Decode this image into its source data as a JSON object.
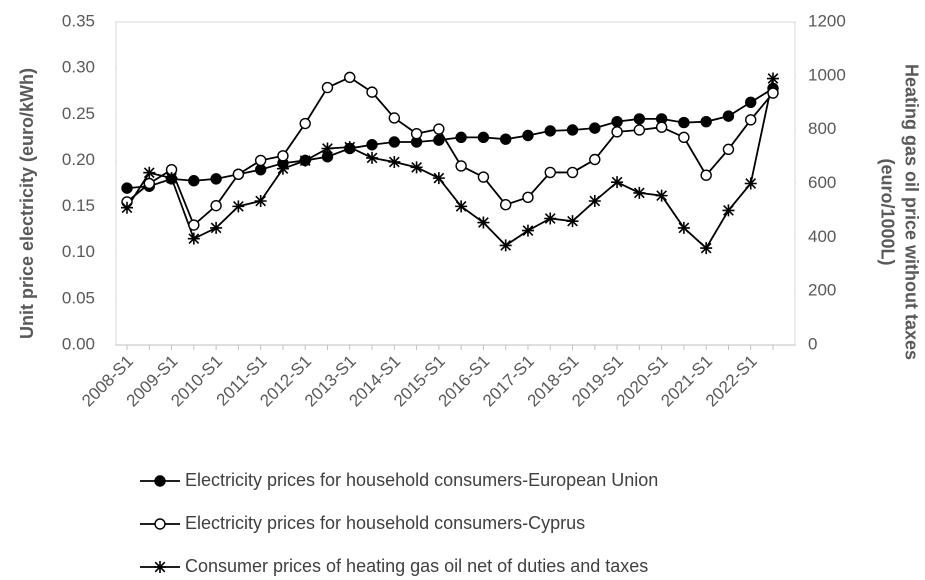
{
  "chart_data": {
    "type": "line",
    "categories": [
      "2008-S1",
      null,
      "2009-S1",
      null,
      "2010-S1",
      null,
      "2011-S1",
      null,
      "2012-S1",
      null,
      "2013-S1",
      null,
      "2014-S1",
      null,
      "2015-S1",
      null,
      "2016-S1",
      null,
      "2017-S1",
      null,
      "2018-S1",
      null,
      "2019-S1",
      null,
      "2020-S1",
      null,
      "2021-S1",
      null,
      "2022-S1",
      null
    ],
    "y_label": "Unit price electricity (euro/kWh)",
    "y2_label": [
      "Heating gas oil price without taxes",
      "(euro/1000L)"
    ],
    "ylim": [
      0,
      0.35
    ],
    "yticks": [
      {
        "value": 0,
        "label": "0.00"
      },
      {
        "value": 0.05,
        "label": "0.05"
      },
      {
        "value": 0.1,
        "label": "0.10"
      },
      {
        "value": 0.15,
        "label": "0.15"
      },
      {
        "value": 0.2,
        "label": "0.20"
      },
      {
        "value": 0.25,
        "label": "0.25"
      },
      {
        "value": 0.3,
        "label": "0.30"
      },
      {
        "value": 0.35,
        "label": "0.35"
      }
    ],
    "y2lim": [
      0,
      1200
    ],
    "y2ticks": [
      0,
      200,
      400,
      600,
      800,
      1000,
      1200
    ],
    "grid": false,
    "legend": "bottom",
    "series": [
      {
        "name": "Electricity prices for household consumers-European Union",
        "color": "#000000",
        "marker": "filled-circle",
        "values": [
          0.17,
          0.172,
          0.18,
          0.178,
          0.18,
          0.185,
          0.19,
          0.197,
          0.2,
          0.204,
          0.213,
          0.217,
          0.22,
          0.22,
          0.222,
          0.225,
          0.225,
          0.223,
          0.227,
          0.232,
          0.233,
          0.235,
          0.242,
          0.245,
          0.245,
          0.241,
          0.242,
          0.248,
          0.263,
          0.278
        ]
      },
      {
        "name": "Electricity prices for household consumers-Cyprus",
        "color": "#000000",
        "marker": "open-circle",
        "values": [
          0.155,
          0.175,
          0.19,
          0.13,
          0.151,
          0.185,
          0.2,
          0.205,
          0.24,
          0.279,
          0.29,
          0.274,
          0.246,
          0.229,
          0.234,
          0.194,
          0.182,
          0.152,
          0.16,
          0.187,
          0.187,
          0.201,
          0.231,
          0.233,
          0.236,
          0.225,
          0.184,
          0.212,
          0.244,
          0.273
        ]
      },
      {
        "name": "Consumer prices of heating gas oil net of duties and taxes",
        "color": "#000000",
        "marker": "star",
        "axis": "y2",
        "values": [
          510,
          640,
          620,
          395,
          435,
          515,
          535,
          655,
          685,
          730,
          735,
          695,
          680,
          660,
          620,
          515,
          455,
          370,
          425,
          470,
          460,
          535,
          605,
          565,
          555,
          435,
          360,
          500,
          600,
          990
        ]
      }
    ]
  }
}
